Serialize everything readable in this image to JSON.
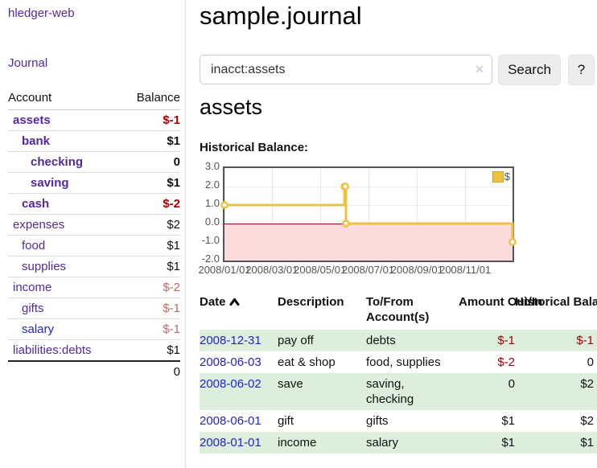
{
  "theme": {
    "purple": "#5229a3",
    "link_blue": "#2323cc",
    "negative_strong": "#a40000",
    "negative_muted": "#bc6a6a",
    "stripe_green": "#ddeedd",
    "series_gold": "#edc240",
    "negative_fill_pink": "#fbdbdb",
    "zero_line_red": "#a00000",
    "chart_frame_gray": "#545454"
  },
  "sidebar": {
    "app_title": "hledger-web",
    "journal_link": "Journal",
    "accounts": {
      "header_account": "Account",
      "header_balance": "Balance",
      "rows": [
        {
          "name": "assets",
          "balance": "$-1",
          "level": 1,
          "bold": true,
          "name_class": "purple",
          "balance_class": "neg-strong"
        },
        {
          "name": "bank",
          "balance": "$1",
          "level": 2,
          "bold": true,
          "name_class": "purple",
          "balance_class": ""
        },
        {
          "name": "checking",
          "balance": "0",
          "level": 3,
          "bold": true,
          "name_class": "purple",
          "balance_class": ""
        },
        {
          "name": "saving",
          "balance": "$1",
          "level": 3,
          "bold": true,
          "name_class": "purple",
          "balance_class": ""
        },
        {
          "name": "cash",
          "balance": "$-2",
          "level": 2,
          "bold": true,
          "name_class": "purple",
          "balance_class": "neg-strong"
        },
        {
          "name": "expenses",
          "balance": "$2",
          "level": 1,
          "bold": false,
          "name_class": "purple",
          "balance_class": ""
        },
        {
          "name": "food",
          "balance": "$1",
          "level": 2,
          "bold": false,
          "name_class": "purple",
          "balance_class": ""
        },
        {
          "name": "supplies",
          "balance": "$1",
          "level": 2,
          "bold": false,
          "name_class": "purple",
          "balance_class": ""
        },
        {
          "name": "income",
          "balance": "$-2",
          "level": 1,
          "bold": false,
          "name_class": "purple",
          "balance_class": "neg-muted"
        },
        {
          "name": "gifts",
          "balance": "$-1",
          "level": 2,
          "bold": false,
          "name_class": "purple",
          "balance_class": "neg-muted"
        },
        {
          "name": "salary",
          "balance": "$-1",
          "level": 2,
          "bold": false,
          "name_class": "blue",
          "balance_class": "neg-muted"
        },
        {
          "name": "liabilities:debts",
          "balance": "$1",
          "level": 1,
          "bold": false,
          "name_class": "purple",
          "balance_class": ""
        }
      ],
      "total": "0"
    }
  },
  "main": {
    "title": "sample.journal",
    "search": {
      "value": "inacct:assets",
      "clear_icon": "✕",
      "button_label": "Search",
      "help_label": "?"
    },
    "account_heading": "assets",
    "chart_label": "Historical Balance:"
  },
  "chart_data": {
    "type": "line",
    "step": true,
    "title": "Historical Balance:",
    "series": [
      {
        "name": "$",
        "color": "#edc240",
        "points": [
          {
            "date": "2008-01-01",
            "value": 1
          },
          {
            "date": "2008-06-01",
            "value": 2
          },
          {
            "date": "2008-06-02",
            "value": 2
          },
          {
            "date": "2008-06-03",
            "value": 0
          },
          {
            "date": "2008-12-31",
            "value": -1
          }
        ]
      }
    ],
    "x_range": [
      "2008-01-01",
      "2008-12-31"
    ],
    "ylim": [
      -2,
      3
    ],
    "y_ticks": [
      "3.0",
      "2.0",
      "1.0",
      "0.0",
      "-1.0",
      "-2.0"
    ],
    "x_ticks": [
      "2008/01/01",
      "2008/03/01",
      "2008/05/01",
      "2008/07/01",
      "2008/09/01",
      "2008/11/01"
    ],
    "grid": true,
    "legend_position": "top-right",
    "negative_region_shaded": true
  },
  "register": {
    "headers": {
      "date": "Date",
      "sort_icon": "chevron-up",
      "description": "Description",
      "accounts": "To/From Account(s)",
      "amount": "Amount Out/In",
      "balance": "Historical Balance"
    },
    "rows": [
      {
        "date": "2008-12-31",
        "description": "pay off",
        "accounts": "debts",
        "amount": "$-1",
        "amount_class": "neg-strong",
        "balance": "$-1",
        "balance_class": "neg-strong"
      },
      {
        "date": "2008-06-03",
        "description": "eat & shop",
        "accounts": "food, supplies",
        "amount": "$-2",
        "amount_class": "neg-strong",
        "balance": "0",
        "balance_class": ""
      },
      {
        "date": "2008-06-02",
        "description": "save",
        "accounts": "saving, checking",
        "amount": "0",
        "amount_class": "",
        "balance": "$2",
        "balance_class": ""
      },
      {
        "date": "2008-06-01",
        "description": "gift",
        "accounts": "gifts",
        "amount": "$1",
        "amount_class": "",
        "balance": "$2",
        "balance_class": ""
      },
      {
        "date": "2008-01-01",
        "description": "income",
        "accounts": "salary",
        "amount": "$1",
        "amount_class": "",
        "balance": "$1",
        "balance_class": ""
      }
    ]
  }
}
